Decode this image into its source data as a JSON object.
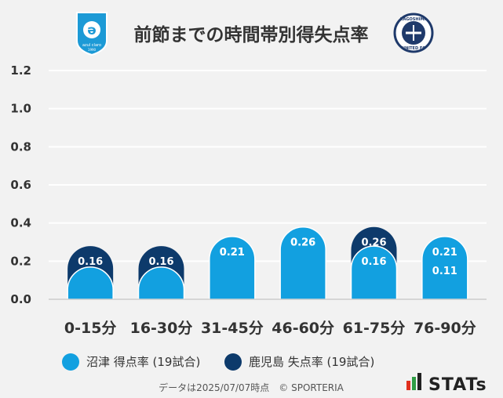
{
  "header": {
    "title": "前節までの時間帯別得失点率",
    "left_logo": {
      "text_top": "ə",
      "text_sub": "azul claro",
      "text_year": "1990",
      "color": "#1c9ad6"
    },
    "right_logo": {
      "text_ring_top": "KAGOSHIMA",
      "text_ring_bottom": "UNITED FC",
      "color": "#1f3a6b"
    }
  },
  "chart_data": {
    "type": "bar",
    "title": "前節までの時間帯別得失点率",
    "categories": [
      "0-15分",
      "16-30分",
      "31-45分",
      "46-60分",
      "61-75分",
      "76-90分"
    ],
    "series": [
      {
        "name": "沼津 得点率 (19試合)",
        "values": [
          0.05,
          0.05,
          0.21,
          0.26,
          0.16,
          0.21
        ],
        "labels": [
          "",
          "",
          "0.21",
          "0.26",
          "0.16",
          "0.21"
        ],
        "color": "#12a0e0"
      },
      {
        "name": "鹿児島 失点率 (19試合)",
        "values": [
          0.16,
          0.16,
          0.21,
          0.26,
          0.26,
          0.11
        ],
        "labels": [
          "0.16",
          "0.16",
          "0.21",
          "0.26",
          "0.26",
          "0.11"
        ],
        "color": "#0d3a6b"
      }
    ],
    "ylim": [
      0,
      1.2
    ],
    "yticks": [
      "0.0",
      "0.2",
      "0.4",
      "0.6",
      "0.8",
      "1.0",
      "1.2"
    ],
    "stacked": true,
    "grid": true,
    "legend_position": "bottom-left"
  },
  "footer": {
    "note": "データは2025/07/07時点　© SPORTERIA",
    "brand": "STATs",
    "brand_colors": [
      "#e0301e",
      "#2f9e44",
      "#222222"
    ]
  }
}
